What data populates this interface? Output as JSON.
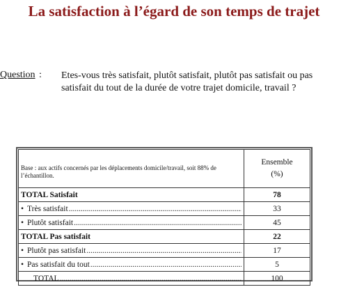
{
  "title": "La satisfaction à l’égard de son temps de trajet",
  "question": {
    "label": "Question",
    "colon": ":",
    "text": "Etes-vous très satisfait, plutôt satisfait, plutôt pas satisfait ou pas satisfait du tout de la durée de votre trajet domicile, travail ?"
  },
  "table": {
    "base_note": "Base : aux actifs concernés par les déplacements domicile/travail, soit 88% de l’échantillon.",
    "col_header_line1": "Ensemble",
    "col_header_line2": "(%)",
    "rows": [
      {
        "label": "TOTAL Satisfait",
        "value": "78"
      },
      {
        "bullet": "•",
        "label": "Très satisfait",
        "value": "33"
      },
      {
        "bullet": "•",
        "label": "Plutôt satisfait",
        "value": "45"
      },
      {
        "label": "TOTAL Pas satisfait",
        "value": "22"
      },
      {
        "bullet": "•",
        "label": "Plutôt pas satisfait",
        "value": "17"
      },
      {
        "bullet": "•",
        "label": "Pas satisfait du tout",
        "value": "5"
      },
      {
        "label": "TOTAL",
        "value": "100"
      }
    ]
  },
  "colors": {
    "title": "#8b1a1a",
    "border": "#333333"
  }
}
